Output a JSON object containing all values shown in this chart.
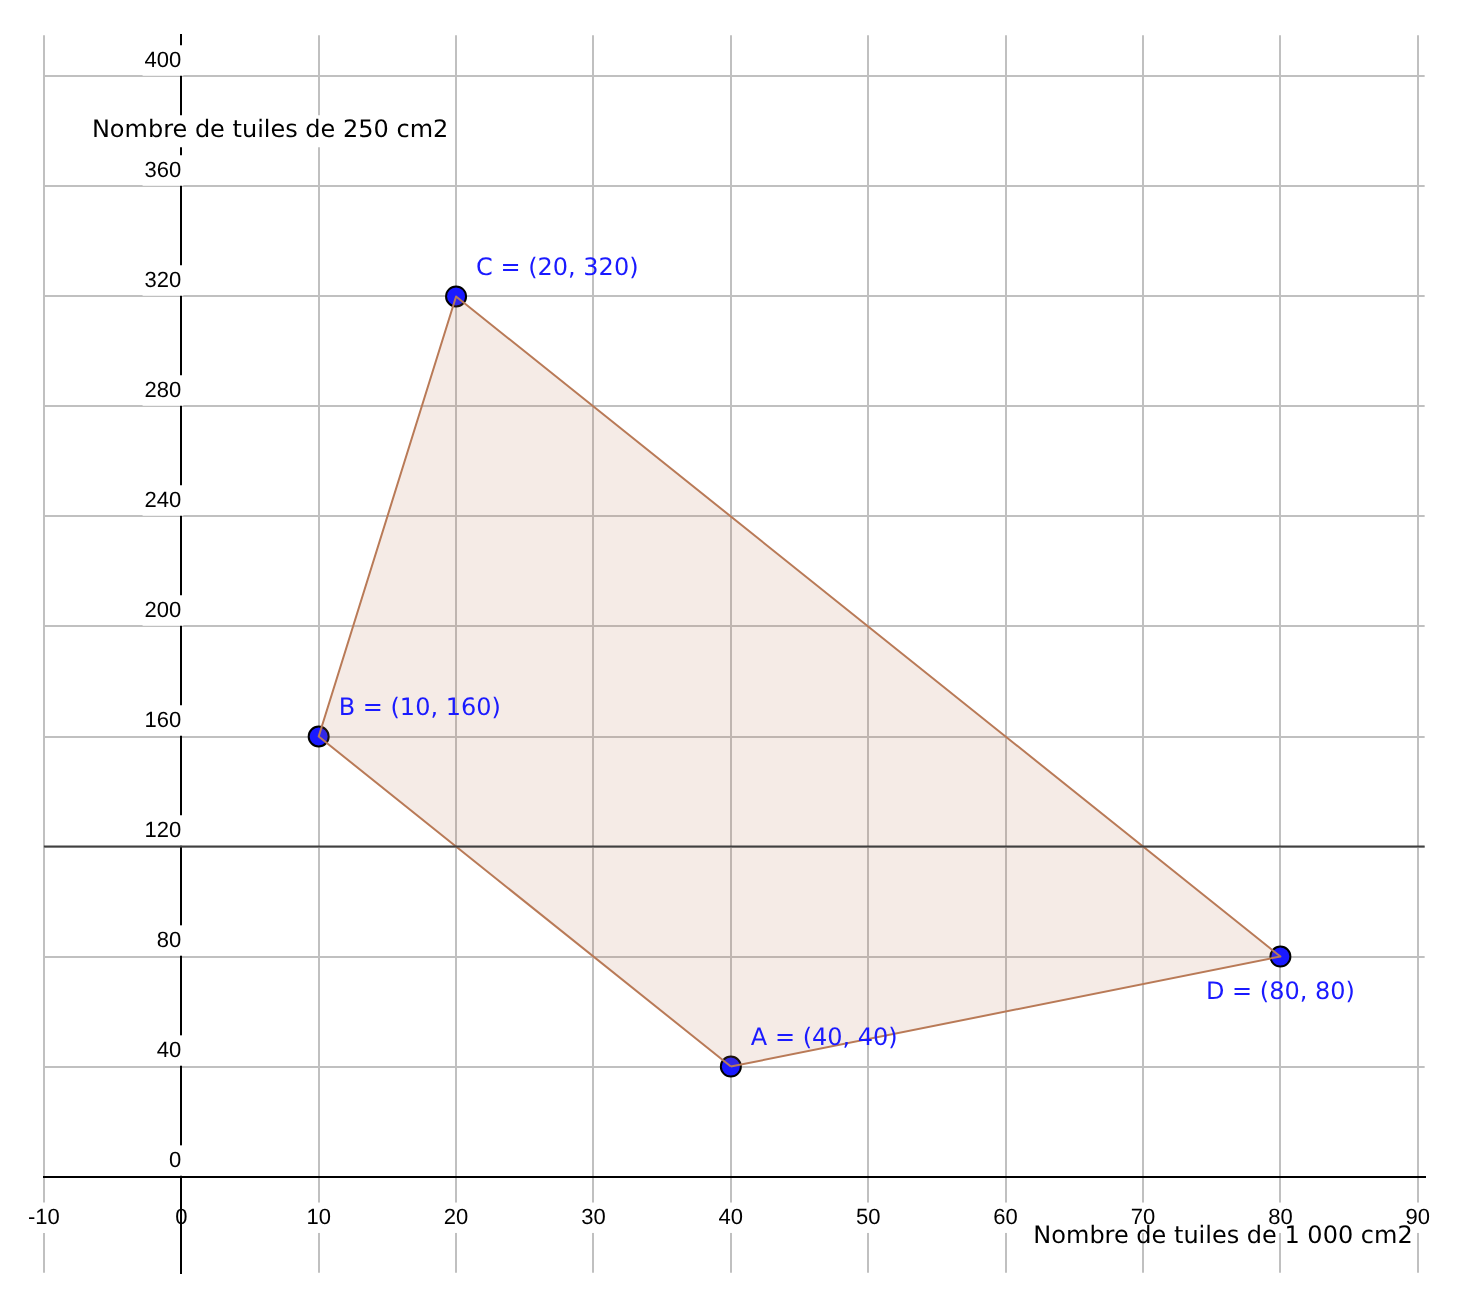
{
  "chart_data": {
    "type": "scatter",
    "xlabel": "Nombre de tuiles de 1 000 cm2",
    "ylabel": "Nombre de tuiles de 250 cm2",
    "xlim": [
      -10,
      90.5
    ],
    "ylim": [
      -35,
      415
    ],
    "xticks": [
      {
        "value": -10,
        "label": "-10"
      },
      0,
      10,
      20,
      30,
      40,
      50,
      60,
      70,
      80,
      90
    ],
    "yticks": [
      0,
      40,
      80,
      120,
      160,
      200,
      240,
      280,
      320,
      360,
      400
    ],
    "grid": true,
    "series": [
      {
        "type": "area",
        "color": "#b97a57",
        "x": [
          40,
          10,
          20,
          80,
          40
        ],
        "values": [
          40,
          160,
          320,
          80,
          40
        ]
      },
      {
        "type": "scatter",
        "marker": "circle",
        "color": "#1a1aff",
        "x": [
          40,
          10,
          20,
          80
        ],
        "values": [
          40,
          160,
          320,
          80
        ]
      }
    ],
    "ref_lines": [
      {
        "axis": "y",
        "value": 120,
        "color": "#404040"
      }
    ],
    "annotations": [
      {
        "text": "A = (40, 40)",
        "x": 40,
        "y": 40
      },
      {
        "text": "B = (10, 160)",
        "x": 10,
        "y": 160
      },
      {
        "text": "C = (20, 320)",
        "x": 20,
        "y": 320
      },
      {
        "text": "D = (80, 80)",
        "x": 80,
        "y": 80
      }
    ]
  }
}
